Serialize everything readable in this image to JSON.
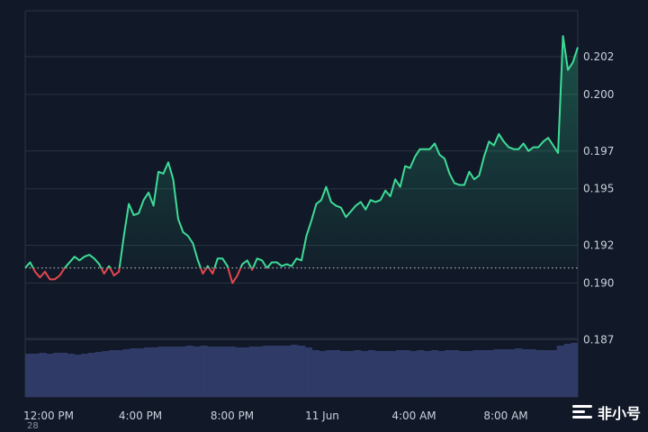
{
  "chart_data": {
    "type": "line",
    "title": "",
    "xlabel": "",
    "ylabel": "",
    "reference_value": 0.1908,
    "ylim": [
      0.1855,
      0.2045
    ],
    "y_ticks": [
      "0.202",
      "0.200",
      "0.197",
      "0.195",
      "0.192",
      "0.190",
      "0.187"
    ],
    "x_ticks": [
      "12:00 PM",
      "4:00 PM",
      "8:00 PM",
      "11 Jun",
      "4:00 AM",
      "8:00 AM"
    ],
    "colors": {
      "up": "#3ddc97",
      "down": "#e5484d",
      "volume": "#2f3a66",
      "grid": "#2a3340",
      "background": "#111827"
    },
    "series": [
      {
        "values": [
          0.1908,
          0.1911,
          0.1906,
          0.1903,
          0.1906,
          0.1902,
          0.1902,
          0.1904,
          0.1908,
          0.1911,
          0.1914,
          0.1912,
          0.1914,
          0.1915,
          0.1913,
          0.191,
          0.1905,
          0.1909,
          0.1904,
          0.1906,
          0.1925,
          0.1942,
          0.1936,
          0.1937,
          0.1944,
          0.1948,
          0.1941,
          0.1959,
          0.1958,
          0.1964,
          0.1955,
          0.1934,
          0.1927,
          0.1925,
          0.1921,
          0.1912,
          0.1905,
          0.1909,
          0.1905,
          0.1913,
          0.1913,
          0.1909,
          0.19,
          0.1904,
          0.191,
          0.1912,
          0.1907,
          0.1913,
          0.1912,
          0.1908,
          0.1911,
          0.1911,
          0.1909,
          0.191,
          0.1909,
          0.1913,
          0.1912,
          0.1925,
          0.1933,
          0.1942,
          0.1944,
          0.1951,
          0.1943,
          0.1941,
          0.194,
          0.1935,
          0.1938,
          0.1941,
          0.1943,
          0.1939,
          0.1944,
          0.1943,
          0.1944,
          0.1949,
          0.1946,
          0.1955,
          0.1951,
          0.1962,
          0.1961,
          0.1967,
          0.1971,
          0.1971,
          0.1971,
          0.1974,
          0.1968,
          0.1966,
          0.1958,
          0.1953,
          0.1952,
          0.1952,
          0.1959,
          0.1955,
          0.1957,
          0.1967,
          0.1975,
          0.1973,
          0.1979,
          0.1975,
          0.1972,
          0.1971,
          0.1971,
          0.1974,
          0.197,
          0.1972,
          0.1972,
          0.1975,
          0.1977,
          0.1973,
          0.1969,
          0.2031,
          0.2013,
          0.2017,
          0.2025
        ]
      }
    ]
  },
  "watermark": {
    "text": "非小号",
    "icon": "bars-logo-icon"
  },
  "clipped_label": "28"
}
